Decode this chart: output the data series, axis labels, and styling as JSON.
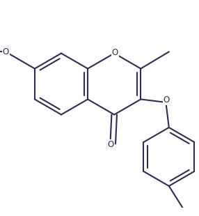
{
  "bg_color": "#ffffff",
  "line_color": "#2d2d50",
  "line_width": 1.5,
  "font_size": 8.5,
  "figsize": [
    2.86,
    3.1
  ],
  "dpi": 100,
  "xlim": [
    0.0,
    2.86
  ],
  "ylim": [
    0.0,
    3.1
  ]
}
